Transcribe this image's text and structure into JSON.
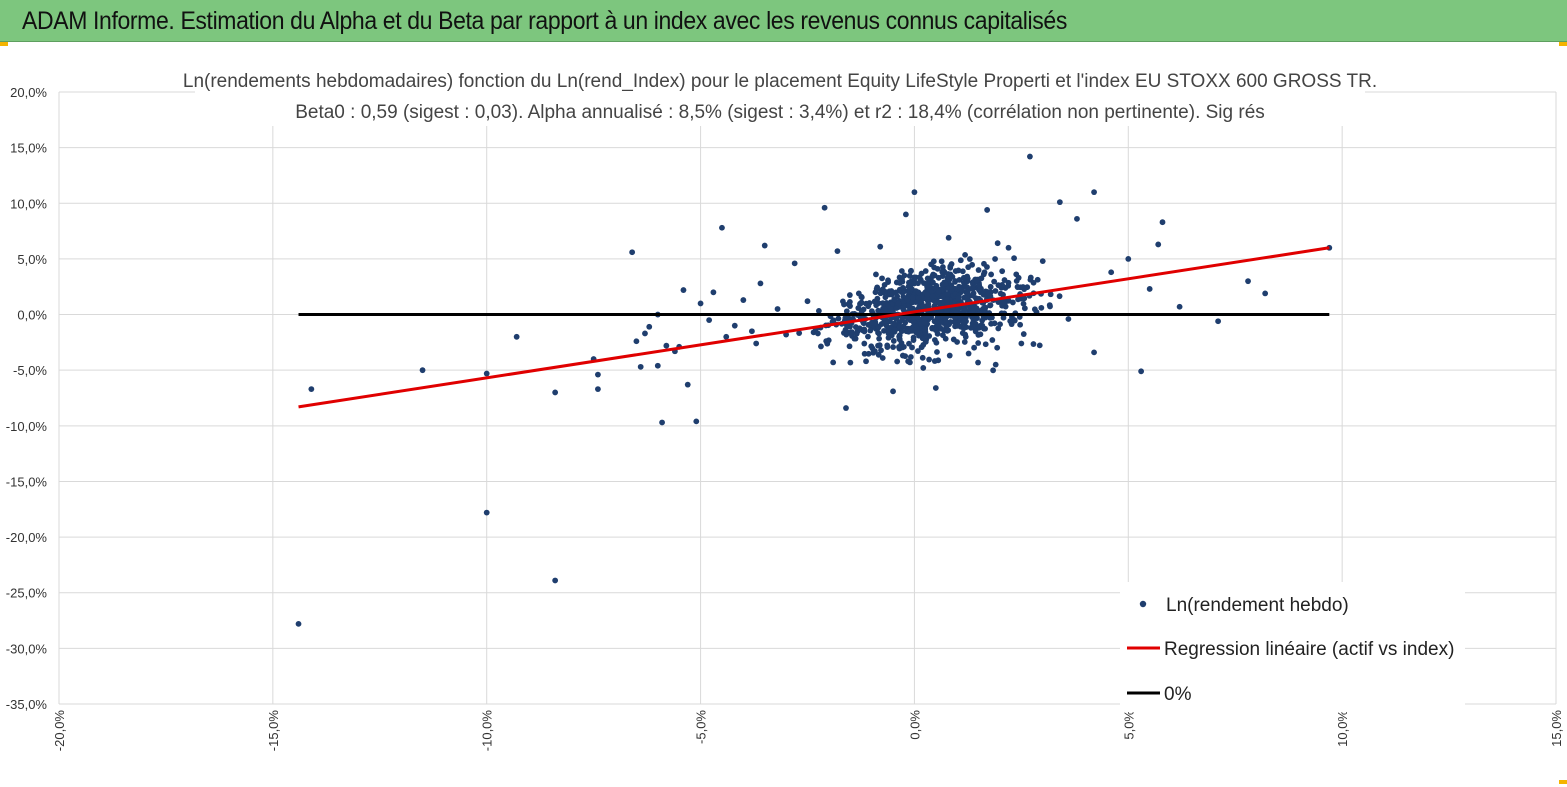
{
  "header": {
    "title": "ADAM Informe. Estimation du Alpha et du Beta par rapport à un index avec les revenus connus capitalisés"
  },
  "chart_data": {
    "type": "scatter",
    "title": "Ln(rendements hebdomadaires) fonction du Ln(rend_Index) pour le placement Equity LifeStyle Properti et l'index EU STOXX 600 GROSS TR.",
    "subtitle": "Beta0 : 0,59 (sigest : 0,03). Alpha annualisé : 8,5% (sigest : 3,4%) et r2 : 18,4% (corrélation non pertinente). Sig rés",
    "xlim": [
      -20,
      15
    ],
    "ylim": [
      -35,
      20
    ],
    "x_ticks": [
      -20,
      -15,
      -10,
      -5,
      0,
      5,
      10,
      15
    ],
    "y_ticks": [
      20,
      15,
      10,
      5,
      0,
      -5,
      -10,
      -15,
      -20,
      -25,
      -30,
      -35
    ],
    "x_tick_labels": [
      "-20,0%",
      "-15,0%",
      "-10,0%",
      "-5,0%",
      "0,0%",
      "5,0%",
      "10,0%",
      "15,0%"
    ],
    "y_tick_labels": [
      "20,0%",
      "15,0%",
      "10,0%",
      "5,0%",
      "0,0%",
      "-5,0%",
      "-10,0%",
      "-15,0%",
      "-20,0%",
      "-25,0%",
      "-30,0%",
      "-35,0%"
    ],
    "colors": {
      "points": "#1f3e6e",
      "regression": "#e00000",
      "zero": "#000000",
      "grid": "#d9d9d9"
    },
    "series": [
      {
        "name": "Ln(rendement hebdo)",
        "kind": "scatter",
        "points": [
          [
            -14.4,
            -27.8
          ],
          [
            -14.1,
            -6.7
          ],
          [
            -11.5,
            -5.0
          ],
          [
            -10.0,
            -5.3
          ],
          [
            -10.0,
            -17.8
          ],
          [
            -9.3,
            -2.0
          ],
          [
            -8.4,
            -7.0
          ],
          [
            -8.4,
            -23.9
          ],
          [
            -7.5,
            -4.0
          ],
          [
            -7.4,
            -5.4
          ],
          [
            -7.4,
            -6.7
          ],
          [
            -6.6,
            5.6
          ],
          [
            -6.5,
            -2.4
          ],
          [
            -6.4,
            -4.7
          ],
          [
            -6.3,
            -1.7
          ],
          [
            -6.2,
            -1.1
          ],
          [
            -6.0,
            0.0
          ],
          [
            -6.0,
            -4.6
          ],
          [
            -5.9,
            -9.7
          ],
          [
            -5.8,
            -2.8
          ],
          [
            -5.6,
            -3.3
          ],
          [
            -5.5,
            -2.9
          ],
          [
            -5.4,
            2.2
          ],
          [
            -5.3,
            -6.3
          ],
          [
            -5.1,
            -9.6
          ],
          [
            -5.0,
            1.0
          ],
          [
            -4.8,
            -0.5
          ],
          [
            -4.7,
            2.0
          ],
          [
            -4.5,
            7.8
          ],
          [
            -4.4,
            -2.0
          ],
          [
            -4.2,
            -1.0
          ],
          [
            -4.0,
            1.3
          ],
          [
            -3.8,
            -1.5
          ],
          [
            -3.7,
            -2.6
          ],
          [
            -3.6,
            2.8
          ],
          [
            -3.5,
            6.2
          ],
          [
            -3.2,
            0.5
          ],
          [
            -3.0,
            -1.8
          ],
          [
            -2.8,
            4.6
          ],
          [
            -2.5,
            1.2
          ],
          [
            -2.1,
            9.6
          ],
          [
            -1.9,
            -4.3
          ],
          [
            -1.8,
            5.7
          ],
          [
            -1.6,
            -8.4
          ],
          [
            -1.3,
            1.9
          ],
          [
            -0.8,
            6.1
          ],
          [
            -0.5,
            -6.9
          ],
          [
            -0.2,
            9.0
          ],
          [
            0.0,
            11.0
          ],
          [
            0.3,
            1.8
          ],
          [
            0.5,
            -6.6
          ],
          [
            0.8,
            6.9
          ],
          [
            1.2,
            -2.0
          ],
          [
            1.5,
            4.0
          ],
          [
            1.7,
            9.4
          ],
          [
            1.9,
            -4.5
          ],
          [
            2.2,
            6.0
          ],
          [
            2.5,
            -2.6
          ],
          [
            2.7,
            14.2
          ],
          [
            3.0,
            4.8
          ],
          [
            3.4,
            10.1
          ],
          [
            3.6,
            -0.4
          ],
          [
            3.8,
            8.6
          ],
          [
            4.2,
            11.0
          ],
          [
            4.2,
            -3.4
          ],
          [
            4.6,
            3.8
          ],
          [
            5.0,
            5.0
          ],
          [
            5.3,
            -5.1
          ],
          [
            5.5,
            2.3
          ],
          [
            5.7,
            6.3
          ],
          [
            5.8,
            8.3
          ],
          [
            6.2,
            0.7
          ],
          [
            7.1,
            -0.6
          ],
          [
            7.8,
            3.0
          ],
          [
            8.2,
            1.9
          ],
          [
            9.7,
            6.0
          ]
        ]
      },
      {
        "name": "Regression linéaire (actif vs index)",
        "kind": "line",
        "points": [
          [
            -14.4,
            -8.3
          ],
          [
            9.7,
            6.0
          ]
        ]
      },
      {
        "name": "0%",
        "kind": "line",
        "points": [
          [
            -14.4,
            0
          ],
          [
            9.7,
            0
          ]
        ]
      }
    ],
    "cluster_note_count": 900,
    "legend": {
      "position": "bottom-right",
      "entries": [
        "Ln(rendement hebdo)",
        "Regression linéaire (actif vs index)",
        "0%"
      ]
    }
  }
}
